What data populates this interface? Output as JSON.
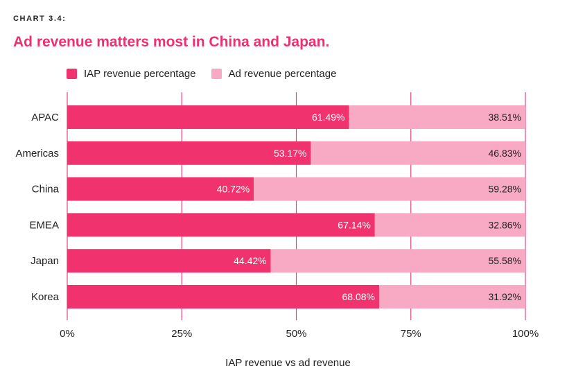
{
  "header": {
    "label": "CHART 3.4:",
    "title": "Ad revenue matters most in China and Japan."
  },
  "legend": [
    {
      "label": "IAP revenue percentage",
      "color": "#f0336f"
    },
    {
      "label": "Ad revenue percentage",
      "color": "#f8a9c4"
    }
  ],
  "chart_data": {
    "type": "bar",
    "orientation": "horizontal",
    "stacked": true,
    "categories": [
      "APAC",
      "Americas",
      "China",
      "EMEA",
      "Japan",
      "Korea"
    ],
    "series": [
      {
        "name": "IAP revenue percentage",
        "values": [
          61.49,
          53.17,
          40.72,
          67.14,
          44.42,
          68.08
        ],
        "labels": [
          "61.49%",
          "53.17%",
          "40.72%",
          "67.14%",
          "44.42%",
          "68.08%"
        ],
        "color": "#f0336f"
      },
      {
        "name": "Ad revenue percentage",
        "values": [
          38.51,
          46.83,
          59.28,
          32.86,
          55.58,
          31.92
        ],
        "labels": [
          "38.51%",
          "46.83%",
          "59.28%",
          "32.86%",
          "55.58%",
          "31.92%"
        ],
        "color": "#f8a9c4"
      }
    ],
    "xlabel": "IAP revenue vs ad revenue",
    "xlim": [
      0,
      100
    ],
    "xticks": [
      0,
      25,
      50,
      75,
      100
    ],
    "xtick_labels": [
      "0%",
      "25%",
      "50%",
      "75%",
      "100%"
    ],
    "grid": "vertical",
    "legend_position": "top-left"
  }
}
